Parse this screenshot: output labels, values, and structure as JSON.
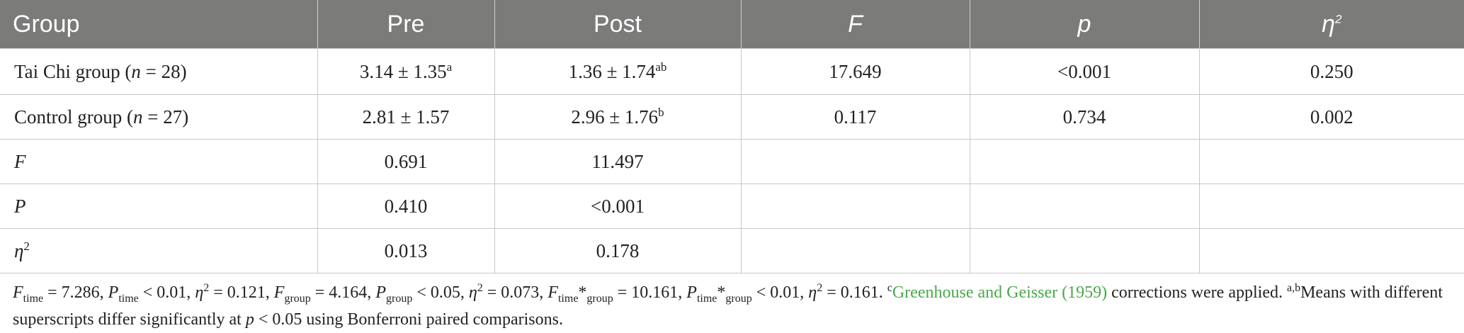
{
  "table": {
    "headers": [
      "Group",
      "Pre",
      "Post",
      "F",
      "p",
      "η"
    ],
    "header_sup": "2",
    "rows": [
      {
        "label": "Tai Chi group (",
        "n": "n",
        "n_value": " = 28)",
        "pre": "3.14 ± 1.35",
        "pre_sup": "a",
        "post": "1.36 ± 1.74",
        "post_sup": "ab",
        "F": "17.649",
        "p": "<0.001",
        "eta2": "0.250"
      },
      {
        "label": "Control group (",
        "n": "n",
        "n_value": " = 27)",
        "pre": "2.81 ± 1.57",
        "pre_sup": "",
        "post": "2.96 ± 1.76",
        "post_sup": "b",
        "F": "0.117",
        "p": "0.734",
        "eta2": "0.002"
      },
      {
        "label": "F",
        "pre": "0.691",
        "post": "11.497"
      },
      {
        "label": "P",
        "pre": "0.410",
        "post": "<0.001"
      },
      {
        "label": "η",
        "label_sup": "2",
        "pre": "0.013",
        "post": "0.178"
      }
    ]
  },
  "footnote": {
    "F": "F",
    "P": "P",
    "eta": "η",
    "sup2": "2",
    "time": "time",
    "group": "group",
    "v_f_time": " = 7.286, ",
    "v_p_time": " < 0.01, ",
    "v_eta1": " = 0.121, ",
    "v_f_group": " = 4.164, ",
    "v_p_group": " < 0.05, ",
    "v_eta2": " = 0.073, ",
    "star": "*",
    "v_f_int": " = 10.161, ",
    "v_p_int": " < 0.01, ",
    "v_eta3": " = 0.161. ",
    "c_sup": "c",
    "citation": "Greenhouse and Geisser (1959)",
    "corrections": " corrections were applied. ",
    "ab_sup": "a,b",
    "means_text": "Means with different superscripts differ significantly at ",
    "p_italic": "p",
    "tail": " < 0.05 using Bonferroni paired comparisons."
  }
}
